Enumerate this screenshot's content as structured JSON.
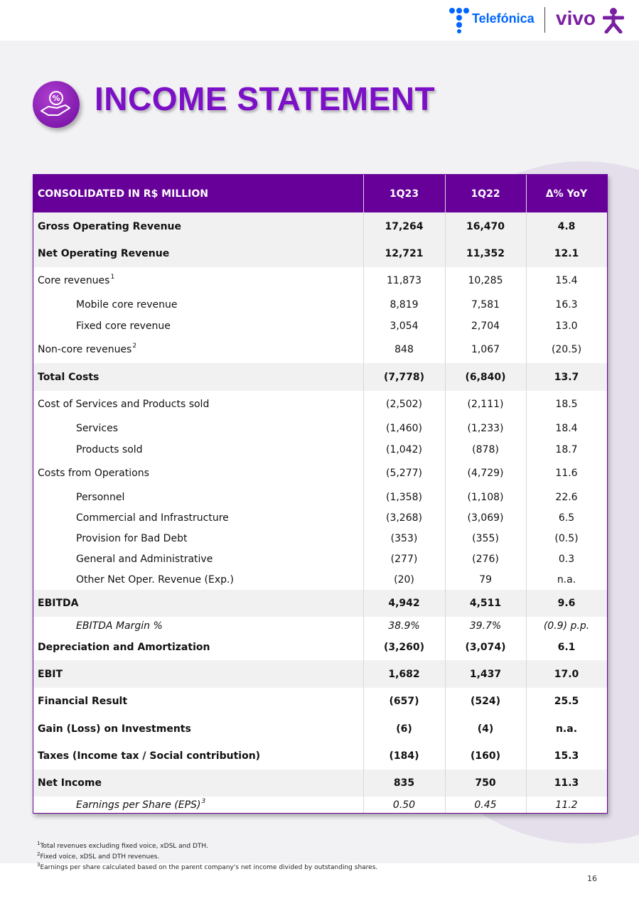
{
  "header": {
    "brands": [
      "Telefónica",
      "vivo"
    ]
  },
  "title": "INCOME STATEMENT",
  "table": {
    "columns": [
      "CONSOLIDATED IN  R$ MILLION",
      "1Q23",
      "1Q22",
      "Δ% YoY"
    ],
    "rows": [
      {
        "cells": [
          "Gross Operating Revenue",
          "17,264",
          "16,470",
          "4.8"
        ],
        "bold": true,
        "shaded": true
      },
      {
        "cells": [
          "Net Operating Revenue",
          "12,721",
          "11,352",
          "12.1"
        ],
        "bold": true,
        "shaded": true
      },
      {
        "cells": [
          "Core revenues",
          "11,873",
          "10,285",
          "15.4"
        ],
        "note": "1"
      },
      {
        "cells": [
          "Mobile core revenue",
          "8,819",
          "7,581",
          "16.3"
        ],
        "indent": true
      },
      {
        "cells": [
          "Fixed core revenue",
          "3,054",
          "2,704",
          "13.0"
        ],
        "indent": true
      },
      {
        "cells": [
          "Non-core revenues",
          "848",
          "1,067",
          "(20.5)"
        ],
        "note": "2"
      },
      {
        "cells": [
          "Total Costs",
          "(7,778)",
          "(6,840)",
          "13.7"
        ],
        "bold": true,
        "shaded": true
      },
      {
        "cells": [
          "Cost of Services and Products sold",
          "(2,502)",
          "(2,111)",
          "18.5"
        ]
      },
      {
        "cells": [
          "Services",
          "(1,460)",
          "(1,233)",
          "18.4"
        ],
        "indent": true
      },
      {
        "cells": [
          "Products sold",
          "(1,042)",
          "(878)",
          "18.7"
        ],
        "indent": true
      },
      {
        "cells": [
          "Costs from Operations",
          "(5,277)",
          "(4,729)",
          "11.6"
        ]
      },
      {
        "cells": [
          "Personnel",
          "(1,358)",
          "(1,108)",
          "22.6"
        ],
        "indent": true
      },
      {
        "cells": [
          "Commercial and Infrastructure",
          "(3,268)",
          "(3,069)",
          "6.5"
        ],
        "indent": true
      },
      {
        "cells": [
          "Provision for Bad Debt",
          "(353)",
          "(355)",
          "(0.5)"
        ],
        "indent": true
      },
      {
        "cells": [
          "General and Administrative",
          "(277)",
          "(276)",
          "0.3"
        ],
        "indent": true
      },
      {
        "cells": [
          "Other Net Oper. Revenue (Exp.)",
          "(20)",
          "79",
          "n.a."
        ],
        "indent": true
      },
      {
        "cells": [
          "EBITDA",
          "4,942",
          "4,511",
          "9.6"
        ],
        "bold": true,
        "shaded": true
      },
      {
        "cells": [
          "EBITDA Margin %",
          "38.9%",
          "39.7%",
          "(0.9) p.p."
        ],
        "indent": true,
        "italic": true
      },
      {
        "cells": [
          "Depreciation and Amortization",
          "(3,260)",
          "(3,074)",
          "6.1"
        ],
        "bold": true
      },
      {
        "cells": [
          "EBIT",
          "1,682",
          "1,437",
          "17.0"
        ],
        "bold": true,
        "shaded": true
      },
      {
        "cells": [
          "Financial Result",
          "(657)",
          "(524)",
          "25.5"
        ],
        "bold": true
      },
      {
        "cells": [
          "Gain (Loss) on Investments",
          "(6)",
          "(4)",
          "n.a."
        ],
        "bold": true
      },
      {
        "cells": [
          "Taxes (Income tax / Social contribution)",
          "(184)",
          "(160)",
          "15.3"
        ],
        "bold": true
      },
      {
        "cells": [
          "Net Income",
          "835",
          "750",
          "11.3"
        ],
        "bold": true,
        "shaded": true
      },
      {
        "cells": [
          "Earnings per Share (EPS)",
          "0.50",
          "0.45",
          "11.2"
        ],
        "indent": true,
        "italic": true,
        "note": "3"
      }
    ]
  },
  "footnotes": [
    {
      "mark": "1",
      "text": "Total revenues excluding fixed voice, xDSL and DTH."
    },
    {
      "mark": "2",
      "text": "Fixed voice, xDSL and DTH revenues."
    },
    {
      "mark": "3",
      "text": "Earnings per share calculated based on the parent company's net income divided by outstanding shares."
    }
  ],
  "page_number": "16"
}
